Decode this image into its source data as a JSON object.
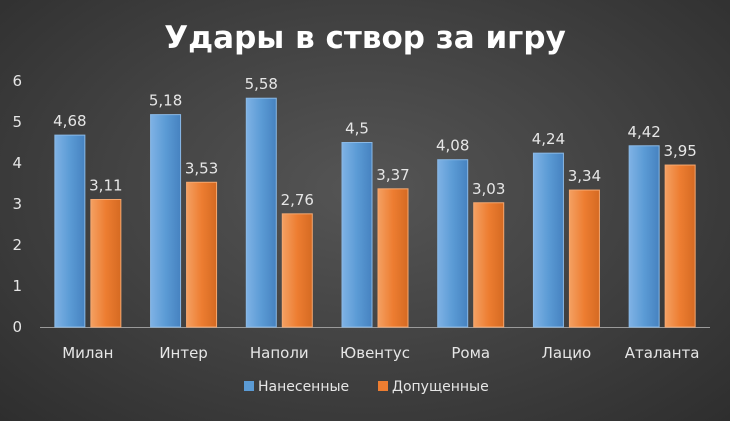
{
  "chart_data": {
    "type": "bar",
    "title": "Удары в створ за игру",
    "categories": [
      "Милан",
      "Интер",
      "Наполи",
      "Ювентус",
      "Рома",
      "Лацио",
      "Аталанта"
    ],
    "series": [
      {
        "name": "Нанесенные",
        "values": [
          4.68,
          5.18,
          5.58,
          4.5,
          4.08,
          4.24,
          4.42
        ],
        "labels": [
          "4,68",
          "5,18",
          "5,58",
          "4,5",
          "4,08",
          "4,24",
          "4,42"
        ],
        "color": "#5b9bd5"
      },
      {
        "name": "Допущенные",
        "values": [
          3.11,
          3.53,
          2.76,
          3.37,
          3.03,
          3.34,
          3.95
        ],
        "labels": [
          "3,11",
          "3,53",
          "2,76",
          "3,37",
          "3,03",
          "3,34",
          "3,95"
        ],
        "color": "#ed7d31"
      }
    ],
    "ylim": [
      0,
      6
    ],
    "yticks": [
      "0",
      "1",
      "2",
      "3",
      "4",
      "5",
      "6"
    ],
    "grid": false,
    "legend_position": "bottom"
  }
}
